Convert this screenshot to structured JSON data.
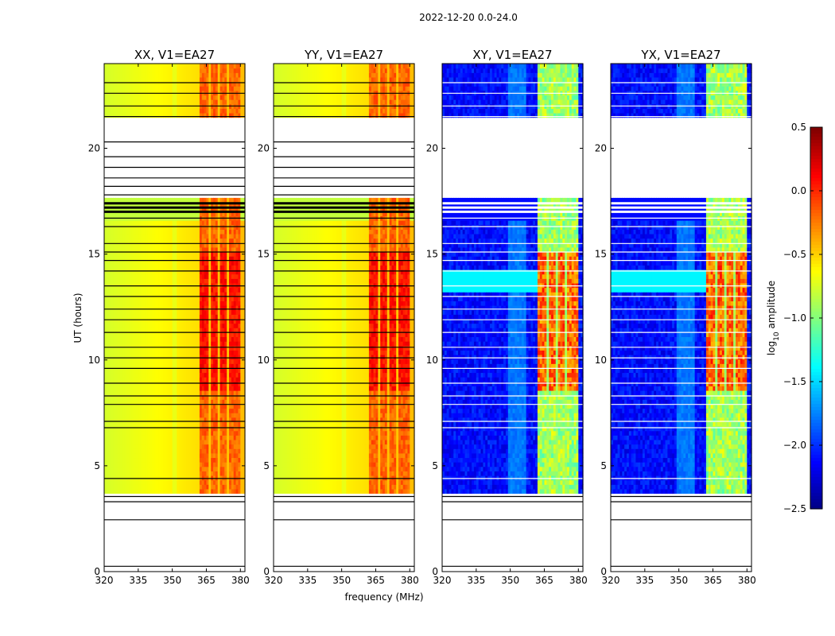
{
  "chart_data": {
    "type": "heatmap",
    "suptitle": "2022-12-20 0.0-24.0",
    "xlabel": "frequency (MHz)",
    "ylabel": "UT (hours)",
    "xlim": [
      320,
      382
    ],
    "ylim": [
      0,
      24
    ],
    "xticks": [
      320,
      335,
      350,
      365,
      380
    ],
    "yticks": [
      0,
      5,
      10,
      15,
      20
    ],
    "panels": [
      {
        "name": "XX",
        "title": "XX, V1=EA27",
        "mode": "parallel",
        "seed": 11
      },
      {
        "name": "YY",
        "title": "YY, V1=EA27",
        "mode": "parallel",
        "seed": 23
      },
      {
        "name": "XY",
        "title": "XY, V1=EA27",
        "mode": "cross",
        "seed": 37
      },
      {
        "name": "YX",
        "title": "YX, V1=EA27",
        "mode": "cross",
        "seed": 41
      }
    ],
    "colorbar": {
      "label": "log",
      "label_sub": "10",
      "label_suffix": " amplitude",
      "range": [
        -2.5,
        0.5
      ],
      "ticks": [
        0.5,
        0.0,
        -0.5,
        -1.0,
        -1.5,
        -2.0,
        -2.5
      ],
      "tick_labels": [
        "0.5",
        "0.0",
        "−0.5",
        "−1.0",
        "−1.5",
        "−2.0",
        "−2.5"
      ],
      "colormap": "jet"
    },
    "data_extent_hours": [
      3.7,
      24.0
    ],
    "empty_band_hours": [
      21.4,
      17.6
    ],
    "strong_rfi_band_mhz": [
      362.5,
      380.0
    ],
    "channel_gap_mhz": [
      366.5,
      371.0,
      375.0
    ]
  }
}
